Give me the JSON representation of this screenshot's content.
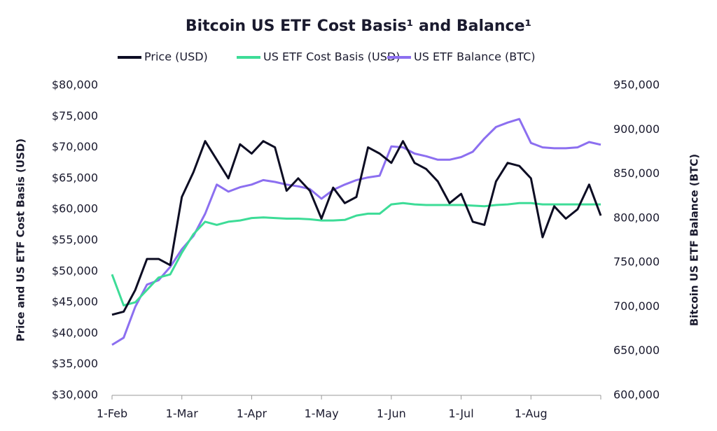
{
  "chart_data": {
    "type": "line",
    "title": "Bitcoin US ETF Cost Basis¹ and Balance¹",
    "ylabel": "Price and US ETF Cost Basis (USD)",
    "y2label": "Bitcoin US ETF Balance (BTC)",
    "categories": [
      "1-Feb",
      null,
      null,
      null,
      null,
      null,
      "1-Mar",
      null,
      null,
      null,
      null,
      null,
      "1-Apr",
      null,
      null,
      null,
      null,
      null,
      "1-May",
      null,
      null,
      null,
      null,
      null,
      "1-Jun",
      null,
      null,
      null,
      null,
      null,
      "1-Jul",
      null,
      null,
      null,
      null,
      null,
      "1-Aug",
      null,
      null,
      null,
      null,
      null,
      null
    ],
    "ylim": [
      30000,
      80000
    ],
    "yticks": [
      {
        "value": 30000,
        "label": "$30,000"
      },
      {
        "value": 35000,
        "label": "$35,000"
      },
      {
        "value": 40000,
        "label": "$40,000"
      },
      {
        "value": 45000,
        "label": "$45,000"
      },
      {
        "value": 50000,
        "label": "$50,000"
      },
      {
        "value": 55000,
        "label": "$55,000"
      },
      {
        "value": 60000,
        "label": "$60,000"
      },
      {
        "value": 65000,
        "label": "$65,000"
      },
      {
        "value": 70000,
        "label": "$70,000"
      },
      {
        "value": 75000,
        "label": "$75,000"
      },
      {
        "value": 80000,
        "label": "$80,000"
      }
    ],
    "y2lim": [
      600000,
      950000
    ],
    "y2ticks": [
      {
        "value": 600000,
        "label": "600,000"
      },
      {
        "value": 650000,
        "label": "650,000"
      },
      {
        "value": 700000,
        "label": "700,000"
      },
      {
        "value": 750000,
        "label": "750,000"
      },
      {
        "value": 800000,
        "label": "800,000"
      },
      {
        "value": 850000,
        "label": "850,000"
      },
      {
        "value": 900000,
        "label": "900,000"
      },
      {
        "value": 950000,
        "label": "950,000"
      }
    ],
    "series": [
      {
        "name": "Price (USD)",
        "color": "#0d0d23",
        "values": [
          43000,
          43500,
          47000,
          52000,
          52000,
          51000,
          62000,
          66000,
          71000,
          68000,
          65000,
          70500,
          69000,
          71000,
          70000,
          63000,
          65000,
          63000,
          58500,
          63500,
          61000,
          62000,
          70000,
          69000,
          67500,
          71000,
          67500,
          66500,
          64500,
          61000,
          62500,
          58000,
          57500,
          64500,
          67500,
          67000,
          65000,
          55500,
          60500,
          58500,
          60000,
          64000,
          59000
        ]
      },
      {
        "name": "US ETF Cost Basis (USD)",
        "color": "#3ddc97",
        "values": [
          49500,
          44500,
          45000,
          47000,
          49000,
          49500,
          53000,
          56000,
          58000,
          57500,
          58000,
          58200,
          58600,
          58700,
          58600,
          58500,
          58500,
          58400,
          58200,
          58200,
          58300,
          59000,
          59300,
          59300,
          60800,
          61000,
          60800,
          60700,
          60700,
          60700,
          60700,
          60600,
          60500,
          60700,
          60800,
          61000,
          61000,
          60800,
          60800,
          60800,
          60800,
          60800,
          60800
        ]
      },
      {
        "name": "US ETF Balance (BTC)",
        "color": "#8c6ff0",
        "axis": "y2",
        "values": [
          657000,
          665000,
          700000,
          725000,
          730000,
          745000,
          765000,
          780000,
          805000,
          838000,
          830000,
          835000,
          838000,
          843000,
          841000,
          838000,
          836000,
          833000,
          822000,
          832000,
          838000,
          843000,
          846000,
          848000,
          881000,
          880000,
          873000,
          870000,
          866000,
          866000,
          869000,
          875000,
          890000,
          903000,
          908000,
          912000,
          885000,
          880000,
          879000,
          879000,
          880000,
          886000,
          883000
        ]
      }
    ]
  }
}
